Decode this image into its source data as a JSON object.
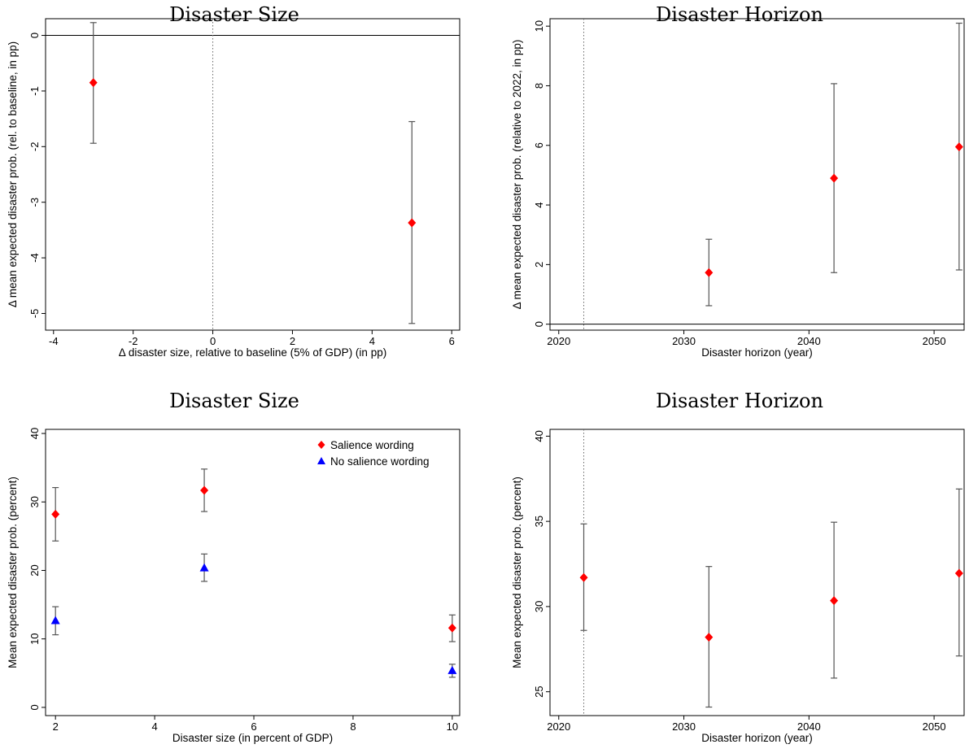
{
  "figure": {
    "background": "#ffffff",
    "marker_colors": {
      "red": "#ff0000",
      "blue": "#0000ff"
    },
    "errorbar_color": "#555555"
  },
  "chart_data": [
    {
      "type": "scatter",
      "title": "Disaster Size",
      "xlabel": "Δ disaster size, relative to baseline (5% of GDP) (in pp)",
      "ylabel": "Δ mean expected disaster prob. (rel. to baseline, in pp)",
      "xlim": [
        -4.2,
        6.2
      ],
      "ylim": [
        -5.3,
        0.3
      ],
      "xticks": [
        -4,
        -2,
        0,
        2,
        4,
        6
      ],
      "xtick_labels": [
        "-4",
        "-2",
        "0",
        "2",
        "4",
        "6"
      ],
      "yticks": [
        0,
        -1,
        -2,
        -3,
        -4,
        -5
      ],
      "ytick_labels": [
        "0",
        "-1",
        "-2",
        "-3",
        "-4",
        "-5"
      ],
      "hline": 0,
      "vline": 0,
      "grid": false,
      "series": [
        {
          "marker": "diamond",
          "color": "#ff0000",
          "points": [
            {
              "x": -3,
              "y": -0.85,
              "lo": -1.94,
              "hi": 0.23
            },
            {
              "x": 5,
              "y": -3.37,
              "lo": -5.18,
              "hi": -1.55
            }
          ]
        }
      ]
    },
    {
      "type": "scatter",
      "title": "Disaster Horizon",
      "xlabel": "Disaster horizon (year)",
      "ylabel": "Δ mean expected disaster prob. (relative to 2022, in pp)",
      "xlim": [
        2019.3,
        2052.4
      ],
      "ylim": [
        -0.2,
        10.25
      ],
      "xticks": [
        2020,
        2030,
        2040,
        2050
      ],
      "xtick_labels": [
        "2020",
        "2030",
        "2040",
        "2050"
      ],
      "yticks": [
        0,
        2,
        4,
        6,
        8,
        10
      ],
      "ytick_labels": [
        "0",
        "2",
        "4",
        "6",
        "8",
        "10"
      ],
      "hline": 0,
      "vline": 2022,
      "grid": false,
      "series": [
        {
          "marker": "diamond",
          "color": "#ff0000",
          "points": [
            {
              "x": 2032,
              "y": 1.73,
              "lo": 0.62,
              "hi": 2.85
            },
            {
              "x": 2042,
              "y": 4.9,
              "lo": 1.73,
              "hi": 8.07
            },
            {
              "x": 2052,
              "y": 5.95,
              "lo": 1.82,
              "hi": 10.1
            }
          ]
        }
      ]
    },
    {
      "type": "scatter",
      "title": "Disaster Size",
      "xlabel": "Disaster size (in percent of GDP)",
      "ylabel": "Mean expected disaster prob. (percent)",
      "xlim": [
        1.8,
        10.15
      ],
      "ylim": [
        -1.2,
        40.6
      ],
      "xticks": [
        2,
        4,
        6,
        8,
        10
      ],
      "xtick_labels": [
        "2",
        "4",
        "6",
        "8",
        "10"
      ],
      "yticks": [
        0,
        10,
        20,
        30,
        40
      ],
      "ytick_labels": [
        "0",
        "10",
        "20",
        "30",
        "40"
      ],
      "hline": null,
      "vline": null,
      "grid": false,
      "legend_position": "top-right",
      "series": [
        {
          "name": "Salience wording",
          "marker": "diamond",
          "color": "#ff0000",
          "points": [
            {
              "x": 2,
              "y": 28.2,
              "lo": 24.3,
              "hi": 32.1
            },
            {
              "x": 5,
              "y": 31.7,
              "lo": 28.6,
              "hi": 34.8
            },
            {
              "x": 10,
              "y": 11.6,
              "lo": 9.6,
              "hi": 13.5
            }
          ]
        },
        {
          "name": "No salience wording",
          "marker": "triangle",
          "color": "#0000ff",
          "points": [
            {
              "x": 2,
              "y": 12.7,
              "lo": 10.6,
              "hi": 14.7
            },
            {
              "x": 5,
              "y": 20.4,
              "lo": 18.4,
              "hi": 22.4
            },
            {
              "x": 10,
              "y": 5.4,
              "lo": 4.4,
              "hi": 6.3
            }
          ]
        }
      ]
    },
    {
      "type": "scatter",
      "title": "Disaster Horizon",
      "xlabel": "Disaster horizon (year)",
      "ylabel": "Mean expected disaster prob. (percent)",
      "xlim": [
        2019.3,
        2052.4
      ],
      "ylim": [
        23.6,
        40.4
      ],
      "xticks": [
        2020,
        2030,
        2040,
        2050
      ],
      "xtick_labels": [
        "2020",
        "2030",
        "2040",
        "2050"
      ],
      "yticks": [
        25,
        30,
        35,
        40
      ],
      "ytick_labels": [
        "25",
        "30",
        "35",
        "40"
      ],
      "hline": null,
      "vline": 2022,
      "grid": false,
      "series": [
        {
          "marker": "diamond",
          "color": "#ff0000",
          "points": [
            {
              "x": 2022,
              "y": 31.7,
              "lo": 28.6,
              "hi": 34.85
            },
            {
              "x": 2032,
              "y": 28.2,
              "lo": 24.1,
              "hi": 32.35
            },
            {
              "x": 2042,
              "y": 30.35,
              "lo": 25.8,
              "hi": 34.95
            },
            {
              "x": 2052,
              "y": 31.95,
              "lo": 27.1,
              "hi": 36.9
            }
          ]
        }
      ]
    }
  ]
}
